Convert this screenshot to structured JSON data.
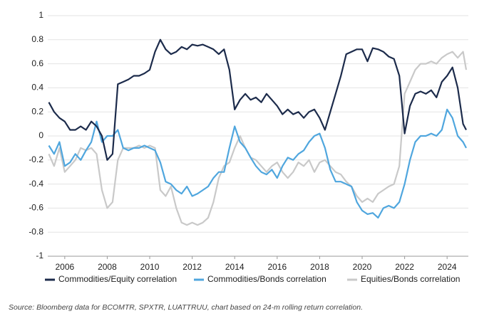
{
  "chart_data": {
    "type": "line",
    "x": [
      2005.25,
      2005.5,
      2005.75,
      2006,
      2006.25,
      2006.5,
      2006.75,
      2007,
      2007.25,
      2007.5,
      2007.75,
      2008,
      2008.25,
      2008.5,
      2008.75,
      2009,
      2009.25,
      2009.5,
      2009.75,
      2010,
      2010.25,
      2010.5,
      2010.75,
      2011,
      2011.25,
      2011.5,
      2011.75,
      2012,
      2012.25,
      2012.5,
      2012.75,
      2013,
      2013.25,
      2013.5,
      2013.75,
      2014,
      2014.25,
      2014.5,
      2014.75,
      2015,
      2015.25,
      2015.5,
      2015.75,
      2016,
      2016.25,
      2016.5,
      2016.75,
      2017,
      2017.25,
      2017.5,
      2017.75,
      2018,
      2018.25,
      2018.5,
      2018.75,
      2019,
      2019.25,
      2019.5,
      2019.75,
      2020,
      2020.25,
      2020.5,
      2020.75,
      2021,
      2021.25,
      2021.5,
      2021.75,
      2022,
      2022.25,
      2022.5,
      2022.75,
      2023,
      2023.25,
      2023.5,
      2023.75,
      2024,
      2024.25,
      2024.5,
      2024.75,
      2024.9
    ],
    "series": [
      {
        "name": "Commodities/Equity correlation",
        "color": "#1c2b4b",
        "values": [
          0.28,
          0.2,
          0.15,
          0.12,
          0.05,
          0.05,
          0.08,
          0.05,
          0.12,
          0.08,
          0.0,
          -0.2,
          -0.15,
          0.43,
          0.45,
          0.47,
          0.5,
          0.5,
          0.52,
          0.55,
          0.7,
          0.8,
          0.72,
          0.68,
          0.7,
          0.74,
          0.72,
          0.76,
          0.75,
          0.76,
          0.74,
          0.72,
          0.68,
          0.72,
          0.55,
          0.22,
          0.3,
          0.35,
          0.3,
          0.32,
          0.28,
          0.35,
          0.3,
          0.25,
          0.18,
          0.22,
          0.18,
          0.2,
          0.15,
          0.2,
          0.22,
          0.15,
          0.05,
          0.2,
          0.35,
          0.5,
          0.68,
          0.7,
          0.72,
          0.72,
          0.62,
          0.73,
          0.72,
          0.7,
          0.66,
          0.64,
          0.5,
          0.02,
          0.25,
          0.35,
          0.37,
          0.35,
          0.38,
          0.32,
          0.45,
          0.5,
          0.57,
          0.4,
          0.1,
          0.05
        ]
      },
      {
        "name": "Commodities/Bonds correlation",
        "color": "#4fa6de",
        "values": [
          -0.08,
          -0.15,
          -0.05,
          -0.25,
          -0.22,
          -0.15,
          -0.2,
          -0.12,
          -0.05,
          0.12,
          -0.05,
          0.0,
          0.0,
          0.05,
          -0.1,
          -0.12,
          -0.1,
          -0.1,
          -0.08,
          -0.1,
          -0.12,
          -0.22,
          -0.38,
          -0.4,
          -0.45,
          -0.48,
          -0.42,
          -0.5,
          -0.48,
          -0.45,
          -0.42,
          -0.35,
          -0.3,
          -0.3,
          -0.1,
          0.08,
          -0.05,
          -0.1,
          -0.18,
          -0.25,
          -0.3,
          -0.32,
          -0.28,
          -0.35,
          -0.25,
          -0.18,
          -0.2,
          -0.15,
          -0.12,
          -0.05,
          0.0,
          0.02,
          -0.1,
          -0.28,
          -0.38,
          -0.38,
          -0.4,
          -0.42,
          -0.55,
          -0.62,
          -0.65,
          -0.64,
          -0.68,
          -0.6,
          -0.58,
          -0.6,
          -0.55,
          -0.4,
          -0.2,
          -0.05,
          0.0,
          0.0,
          0.02,
          0.0,
          0.05,
          0.22,
          0.15,
          0.0,
          -0.05,
          -0.1
        ]
      },
      {
        "name": "Equities/Bonds correlation",
        "color": "#c9c9c9",
        "values": [
          -0.15,
          -0.25,
          -0.1,
          -0.3,
          -0.25,
          -0.2,
          -0.1,
          -0.12,
          -0.1,
          -0.15,
          -0.45,
          -0.6,
          -0.55,
          -0.2,
          -0.1,
          -0.1,
          -0.1,
          -0.08,
          -0.1,
          -0.08,
          -0.1,
          -0.45,
          -0.5,
          -0.42,
          -0.6,
          -0.72,
          -0.74,
          -0.72,
          -0.74,
          -0.72,
          -0.68,
          -0.55,
          -0.35,
          -0.25,
          -0.22,
          -0.1,
          0.0,
          -0.1,
          -0.18,
          -0.2,
          -0.25,
          -0.3,
          -0.25,
          -0.22,
          -0.3,
          -0.35,
          -0.3,
          -0.22,
          -0.25,
          -0.2,
          -0.3,
          -0.22,
          -0.2,
          -0.25,
          -0.3,
          -0.32,
          -0.38,
          -0.42,
          -0.5,
          -0.55,
          -0.52,
          -0.55,
          -0.48,
          -0.45,
          -0.42,
          -0.4,
          -0.25,
          0.35,
          0.45,
          0.55,
          0.6,
          0.6,
          0.62,
          0.6,
          0.65,
          0.68,
          0.7,
          0.65,
          0.7,
          0.55
        ]
      }
    ],
    "xlim": [
      2005.2,
      2025.0
    ],
    "xticks": [
      2006,
      2008,
      2010,
      2012,
      2014,
      2016,
      2018,
      2020,
      2022,
      2024
    ],
    "ylim": [
      -1,
      1
    ],
    "yticks": [
      -1,
      -0.8,
      -0.6,
      -0.4,
      -0.2,
      0,
      0.2,
      0.4,
      0.6,
      0.8,
      1
    ],
    "grid": true,
    "legend": "bottom",
    "source": "Source: Bloomberg data for BCOMTR, SPXTR, LUATTRUU, chart based on 24-m rolling return correlation."
  }
}
